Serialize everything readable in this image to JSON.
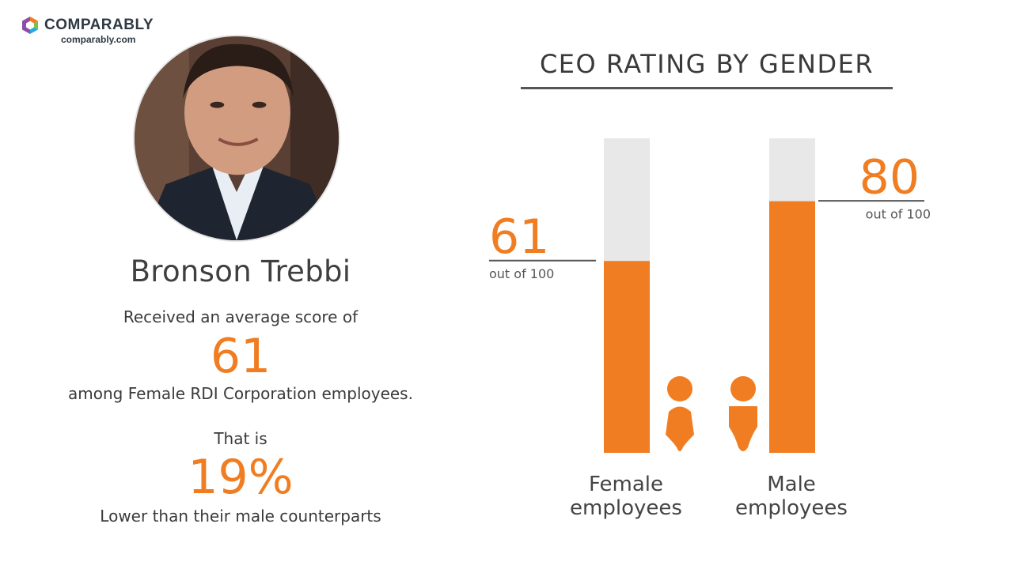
{
  "brand": {
    "name": "COMPARABLY",
    "url": "comparably.com",
    "logo_colors": [
      "#f07d21",
      "#7cc243",
      "#29a8e0",
      "#8d4fa3"
    ]
  },
  "profile": {
    "name": "Bronson Trebbi",
    "line1": "Received an average score of",
    "score": "61",
    "line2": "among Female RDI Corporation employees.",
    "line3": "That is",
    "percent": "19%",
    "line4": "Lower than their male counterparts"
  },
  "colors": {
    "accent": "#f07d21",
    "track": "#e8e8e8",
    "text": "#3a3a3a"
  },
  "chart_data": {
    "type": "bar",
    "title": "CEO RATING BY GENDER",
    "ylim": [
      0,
      100
    ],
    "categories": [
      "Female employees",
      "Male employees"
    ],
    "category_lines": [
      [
        "Female",
        "employees"
      ],
      [
        "Male",
        "employees"
      ]
    ],
    "values": [
      61,
      80
    ],
    "value_suffix": "out of 100",
    "icons": [
      "female-person-icon",
      "male-person-icon"
    ]
  }
}
